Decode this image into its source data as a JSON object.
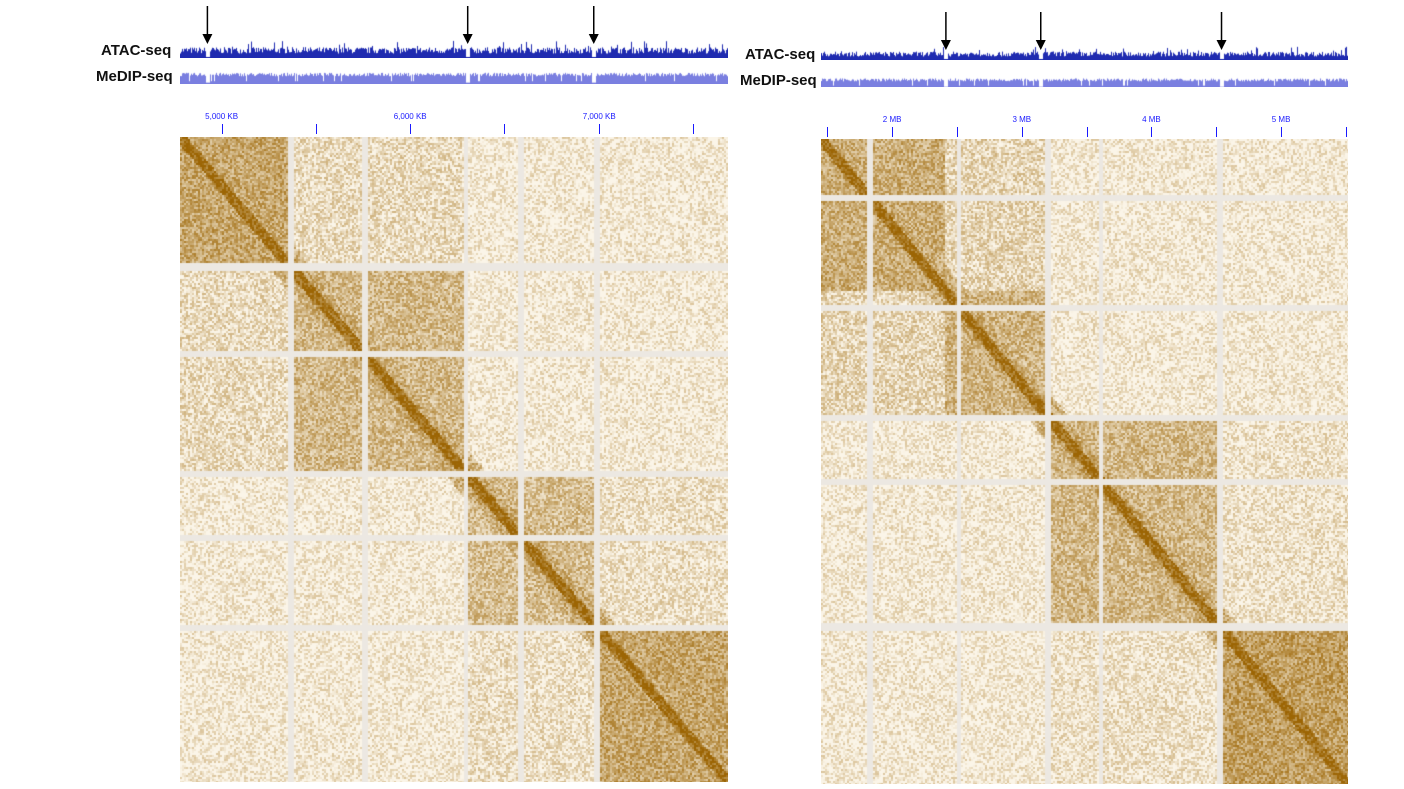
{
  "colors": {
    "atac": "#1f2bb0",
    "medip": "#7a7fe0",
    "axis": "#1a1aff",
    "heat_high": "#9c6504",
    "heat_low": "#fbf5e8",
    "gap": "#ece8e2"
  },
  "panels": [
    {
      "id": "left",
      "tracks": [
        {
          "label": "ATAC-seq",
          "type": "atac"
        },
        {
          "label": "MeDIP-seq",
          "type": "medip"
        }
      ],
      "axis_ticks": [
        {
          "pos": 0.076,
          "label": "5,000 KB"
        },
        {
          "pos": 0.248,
          "label": ""
        },
        {
          "pos": 0.42,
          "label": "6,000 KB"
        },
        {
          "pos": 0.592,
          "label": ""
        },
        {
          "pos": 0.765,
          "label": "7,000 KB"
        },
        {
          "pos": 0.937,
          "label": ""
        }
      ],
      "arrows": [
        0.05,
        0.525,
        0.755
      ],
      "domains": [
        {
          "start": 0.0,
          "end": 0.2,
          "level": 0.55
        },
        {
          "start": 0.2,
          "end": 0.52,
          "level": 0.42
        },
        {
          "start": 0.0,
          "end": 0.52,
          "level": 0.18
        },
        {
          "start": 0.52,
          "end": 0.76,
          "level": 0.38
        },
        {
          "start": 0.52,
          "end": 1.0,
          "level": 0.14
        },
        {
          "start": 0.76,
          "end": 1.0,
          "level": 0.55
        }
      ],
      "gaps": [
        0.2,
        0.335,
        0.52,
        0.62,
        0.76
      ]
    },
    {
      "id": "right",
      "tracks": [
        {
          "label": "ATAC-seq",
          "type": "atac"
        },
        {
          "label": "MeDIP-seq",
          "type": "medip"
        }
      ],
      "axis_ticks": [
        {
          "pos": 0.012,
          "label": ""
        },
        {
          "pos": 0.135,
          "label": "2 MB"
        },
        {
          "pos": 0.258,
          "label": ""
        },
        {
          "pos": 0.381,
          "label": "3 MB"
        },
        {
          "pos": 0.504,
          "label": ""
        },
        {
          "pos": 0.627,
          "label": "4 MB"
        },
        {
          "pos": 0.75,
          "label": ""
        },
        {
          "pos": 0.873,
          "label": "5 MB"
        },
        {
          "pos": 0.996,
          "label": ""
        }
      ],
      "arrows": [
        0.237,
        0.417,
        0.76
      ],
      "domains": [
        {
          "start": 0.0,
          "end": 0.235,
          "level": 0.5
        },
        {
          "start": 0.0,
          "end": 0.43,
          "level": 0.22
        },
        {
          "start": 0.235,
          "end": 0.43,
          "level": 0.45
        },
        {
          "start": 0.43,
          "end": 0.755,
          "level": 0.42
        },
        {
          "start": 0.43,
          "end": 1.0,
          "level": 0.12
        },
        {
          "start": 0.755,
          "end": 1.0,
          "level": 0.6
        }
      ],
      "gaps": [
        0.09,
        0.26,
        0.43,
        0.53,
        0.755
      ]
    }
  ]
}
